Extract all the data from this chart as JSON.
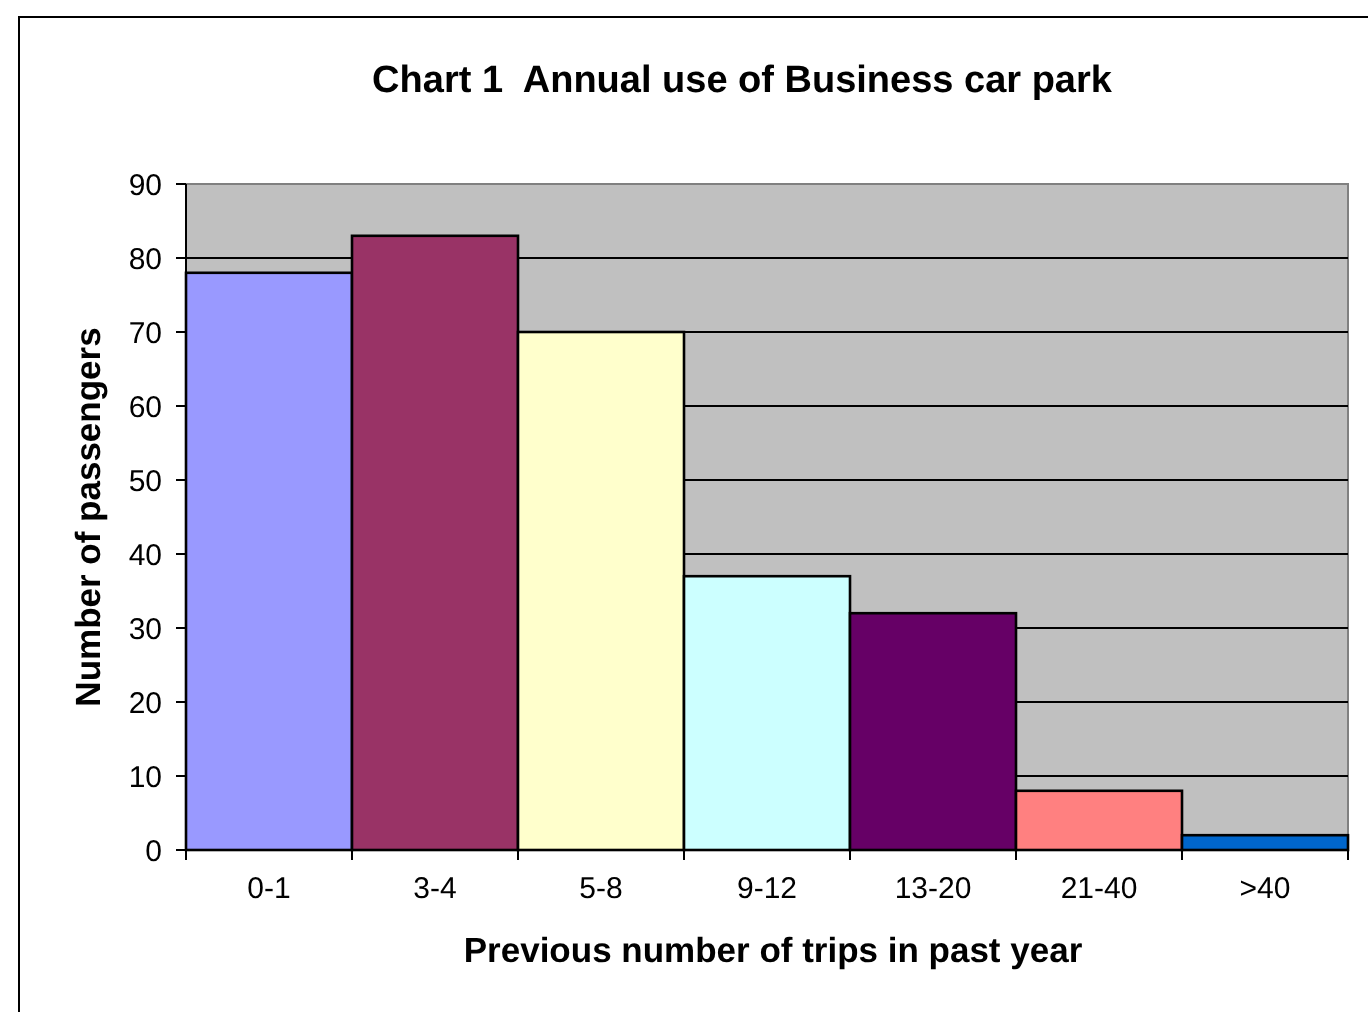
{
  "chart_data": {
    "type": "bar",
    "title": "Chart 1  Annual use of Business car park",
    "xlabel": "Previous number of trips in past year",
    "ylabel": "Number of passengers",
    "categories": [
      "0-1",
      "3-4",
      "5-8",
      "9-12",
      "13-20",
      "21-40",
      ">40"
    ],
    "values": [
      78,
      83,
      70,
      37,
      32,
      8,
      2
    ],
    "colors": [
      "#9999ff",
      "#993366",
      "#ffffcc",
      "#ccffff",
      "#660066",
      "#ff8080",
      "#0066cc"
    ],
    "ylim": [
      0,
      90
    ],
    "yticks": [
      0,
      10,
      20,
      30,
      40,
      50,
      60,
      70,
      80,
      90
    ],
    "grid": "y"
  }
}
